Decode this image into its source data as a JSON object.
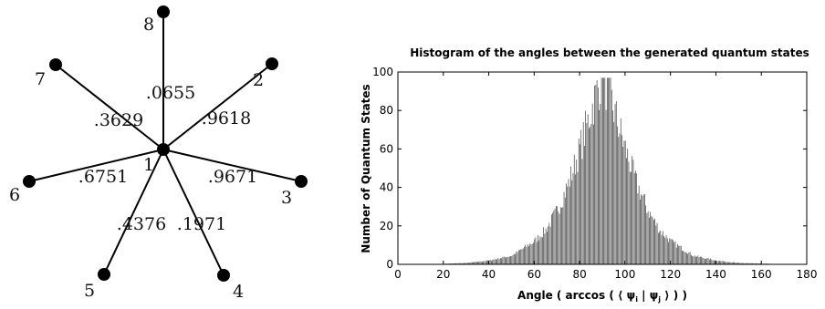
{
  "star_graph": {
    "center": {
      "id": "1",
      "label": "1"
    },
    "edges": [
      {
        "to": "8",
        "node_label": "8",
        "weight": ".0655"
      },
      {
        "to": "2",
        "node_label": "2",
        "weight": ".9618"
      },
      {
        "to": "7",
        "node_label": "7",
        "weight": ".3629"
      },
      {
        "to": "6",
        "node_label": "6",
        "weight": ".6751"
      },
      {
        "to": "3",
        "node_label": "3",
        "weight": ".9671"
      },
      {
        "to": "5",
        "node_label": "5",
        "weight": ".4376"
      },
      {
        "to": "4",
        "node_label": "4",
        "weight": ".1971"
      }
    ]
  },
  "chart_data": {
    "type": "bar",
    "title": "Histogram of the angles between the generated quantum states",
    "xlabel": "Angle ( arccos ( ⟨ ψi | ψj ⟩ ) )",
    "xlabel_parts": {
      "pre": "Angle ( arccos ( ⟨ ψ",
      "i": "i",
      "mid": " | ψ",
      "j": "j",
      "post": " ⟩ ) )"
    },
    "ylabel": "Number of Quantum States",
    "xlim": [
      0,
      180
    ],
    "ylim": [
      0,
      100
    ],
    "xticks": [
      0,
      20,
      40,
      60,
      80,
      100,
      120,
      140,
      160,
      180
    ],
    "yticks": [
      0,
      20,
      40,
      60,
      80,
      100
    ],
    "grid": false,
    "bin_width": 0.5,
    "distribution": {
      "range": [
        20,
        163
      ],
      "peak_angle": 90,
      "peak_count": 97,
      "profile": [
        [
          20,
          0.3
        ],
        [
          30,
          0.7
        ],
        [
          40,
          2
        ],
        [
          50,
          4.5
        ],
        [
          60,
          12
        ],
        [
          65,
          18
        ],
        [
          70,
          28
        ],
        [
          75,
          42
        ],
        [
          80,
          60
        ],
        [
          85,
          80
        ],
        [
          88,
          92
        ],
        [
          90,
          97
        ],
        [
          92,
          92
        ],
        [
          95,
          80
        ],
        [
          100,
          60
        ],
        [
          105,
          42
        ],
        [
          110,
          28
        ],
        [
          115,
          18
        ],
        [
          120,
          12
        ],
        [
          130,
          4.5
        ],
        [
          140,
          2
        ],
        [
          150,
          0.7
        ],
        [
          163,
          0.3
        ]
      ]
    }
  }
}
